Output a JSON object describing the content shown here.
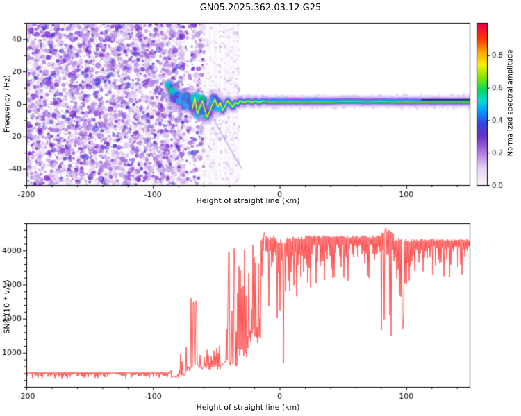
{
  "title": "GN05.2025.362.03.12.G25",
  "chart_data": [
    {
      "type": "heatmap",
      "title": "GN05.2025.362.03.12.G25",
      "xlabel": "Height of straight line (km)",
      "ylabel": "Frequency (Hz)",
      "xlim": [
        -200,
        150
      ],
      "ylim": [
        -50,
        50
      ],
      "xticks": [
        -200,
        -100,
        0,
        100
      ],
      "xminor": 20,
      "yticks": [
        -40,
        -20,
        0,
        20,
        40
      ],
      "yminor": 10,
      "colorbar": {
        "label": "Normalized spectral amplitude",
        "tick_values": [
          0,
          0.2,
          0.4,
          0.6,
          0.8
        ],
        "range": [
          0,
          1
        ],
        "colormap": [
          [
            0,
            "#f9f5fd"
          ],
          [
            0.1,
            "#e7d4f6"
          ],
          [
            0.2,
            "#b27ae2"
          ],
          [
            0.3,
            "#6a30c8"
          ],
          [
            0.38,
            "#3344e0"
          ],
          [
            0.46,
            "#00a0ff"
          ],
          [
            0.52,
            "#00ddd0"
          ],
          [
            0.58,
            "#00d868"
          ],
          [
            0.66,
            "#7ee600"
          ],
          [
            0.74,
            "#f2f200"
          ],
          [
            0.82,
            "#ffa400"
          ],
          [
            0.9,
            "#ff3800"
          ],
          [
            1,
            "#e4004e"
          ]
        ]
      },
      "noise": {
        "x_range": [
          -200,
          -60
        ],
        "sparse_x_range": [
          -60,
          -28
        ],
        "amplitude_range": [
          0,
          0.35
        ],
        "description": "random purple speckle noise across all frequencies at heights below about -60 km"
      },
      "streak_columns": [
        -59,
        -55,
        -51,
        -47,
        -43,
        -40,
        -36,
        -33
      ],
      "diagonal_streaks": [
        [
          [
            -62,
            4
          ],
          [
            -30,
            -40
          ]
        ],
        [
          [
            -55,
            9
          ],
          [
            -44,
            -7
          ]
        ]
      ],
      "signal_trace": {
        "description": "high-amplitude carrier signal settling near 0-2 Hz",
        "amplitude_range": [
          0.5,
          1.0
        ],
        "points": [
          [
            -87,
            11
          ],
          [
            -85,
            7
          ],
          [
            -83,
            3
          ],
          [
            -81,
            6
          ],
          [
            -79,
            1
          ],
          [
            -77,
            4
          ],
          [
            -75,
            -1
          ],
          [
            -73,
            5
          ],
          [
            -71,
            2
          ],
          [
            -69,
            -3
          ],
          [
            -67,
            4
          ],
          [
            -65,
            -6
          ],
          [
            -63,
            -2
          ],
          [
            -61,
            2
          ],
          [
            -59,
            -4
          ],
          [
            -57,
            -8
          ],
          [
            -55,
            -4
          ],
          [
            -53,
            0
          ],
          [
            -51,
            3
          ],
          [
            -49,
            -2
          ],
          [
            -47,
            1
          ],
          [
            -45,
            -4
          ],
          [
            -43,
            -1
          ],
          [
            -41,
            2
          ],
          [
            -39,
            0
          ],
          [
            -37,
            -2
          ],
          [
            -35,
            1
          ],
          [
            -33,
            0
          ],
          [
            -31,
            2
          ],
          [
            -28,
            1
          ],
          [
            -25,
            2
          ],
          [
            -22,
            1
          ],
          [
            -19,
            2
          ],
          [
            -16,
            1
          ],
          [
            -13,
            2
          ],
          [
            -10,
            1.5
          ],
          [
            -5,
            1.6
          ],
          [
            0,
            1.5
          ],
          [
            10,
            1.6
          ],
          [
            20,
            1.5
          ],
          [
            30,
            1.6
          ],
          [
            40,
            1.5
          ],
          [
            55,
            1.8
          ],
          [
            70,
            1.5
          ],
          [
            80,
            1.7
          ],
          [
            90,
            1.5
          ],
          [
            100,
            1.6
          ],
          [
            110,
            1.5
          ],
          [
            125,
            1.5
          ],
          [
            150,
            1.5
          ]
        ]
      },
      "dark_segment": {
        "x_range": [
          112,
          150
        ],
        "freq": 2.6
      }
    },
    {
      "type": "line",
      "xlabel": "Height of straight line (km)",
      "ylabel": "SNR (10 * v/v)",
      "xlim": [
        -200,
        150
      ],
      "ylim": [
        0,
        4800
      ],
      "xticks": [
        -200,
        -100,
        0,
        100
      ],
      "xminor": 20,
      "yticks": [
        1000,
        2000,
        3000,
        4000
      ],
      "yminor": 200,
      "series": [
        {
          "name": "SNR",
          "color": "#ff4040",
          "envelope_segments": [
            [
              -200,
              -86,
              250,
              430,
              "down",
              2
            ],
            [
              -86,
              -79,
              280,
              650,
              "up",
              2
            ],
            [
              -79,
              -74,
              350,
              1400,
              "up",
              2
            ],
            [
              -74,
              -67,
              550,
              2550,
              "up",
              2.2
            ],
            [
              -67,
              -61,
              600,
              2450,
              "up",
              2.2
            ],
            [
              -61,
              -49,
              550,
              1150,
              "up",
              2
            ],
            [
              -49,
              -44,
              600,
              2200,
              "up",
              2.5
            ],
            [
              -44,
              -33,
              700,
              4000,
              "up",
              1.8
            ],
            [
              -33,
              -24,
              1000,
              4250,
              "up",
              1.4
            ],
            [
              -24,
              -15,
              1500,
              4350,
              "up",
              1.2
            ],
            [
              -15,
              -2,
              1900,
              4450,
              "down",
              2
            ],
            [
              -2,
              5,
              1500,
              4350,
              "down",
              2
            ],
            [
              5,
              20,
              2400,
              4400,
              "down",
              2.2
            ],
            [
              20,
              55,
              2900,
              4450,
              "down",
              2.2
            ],
            [
              55,
              80,
              3000,
              4450,
              "down",
              2.2
            ],
            [
              80,
              90,
              1600,
              4600,
              "down",
              1.6
            ],
            [
              90,
              100,
              1800,
              4400,
              "down",
              1.8
            ],
            [
              100,
              112,
              2600,
              4350,
              "down",
              2
            ],
            [
              112,
              150,
              3100,
              4350,
              "down",
              2.2
            ]
          ],
          "spikes": [
            [
              -70,
              2600
            ],
            [
              -68,
              2480
            ],
            [
              -66,
              2520
            ],
            [
              -40,
              3950
            ],
            [
              -36,
              4060
            ],
            [
              -12,
              4520
            ],
            [
              3,
              700
            ],
            [
              84,
              4650
            ],
            [
              88,
              1500
            ],
            [
              97,
              1700
            ]
          ]
        }
      ]
    }
  ]
}
